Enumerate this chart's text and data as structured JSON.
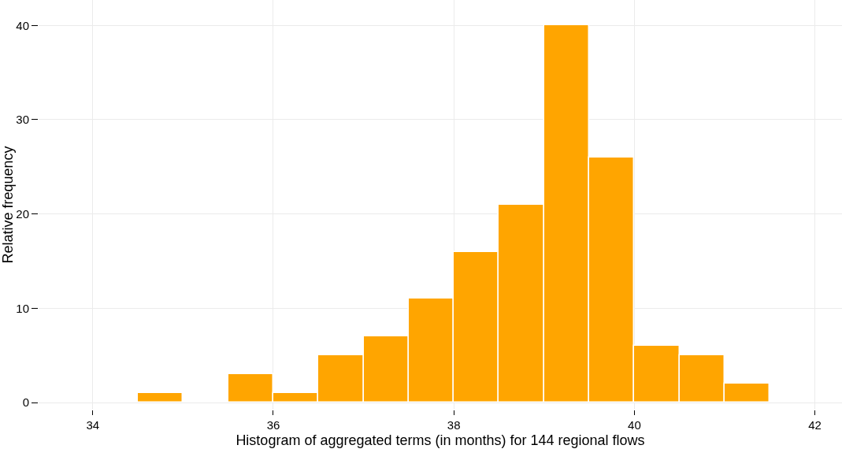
{
  "chart_data": {
    "type": "histogram",
    "xlabel": "Histogram of aggregated terms (in months) for 144 regional flows",
    "ylabel": "Relative frequency",
    "bins": [
      34.5,
      35,
      35.5,
      36,
      36.5,
      37,
      37.5,
      38,
      38.5,
      39,
      39.5,
      40,
      40.5,
      41,
      41.5
    ],
    "values": [
      1,
      0,
      3,
      1,
      5,
      7,
      11,
      16,
      21,
      40,
      26,
      6,
      5,
      2
    ],
    "color": "#ffa500",
    "xlim": [
      33.4,
      42.3
    ],
    "xticks": [
      34,
      36,
      38,
      40,
      42
    ],
    "ylim": [
      -0.75,
      42.7
    ],
    "yticks": [
      0,
      10,
      20,
      30,
      40
    ],
    "grid": true
  }
}
